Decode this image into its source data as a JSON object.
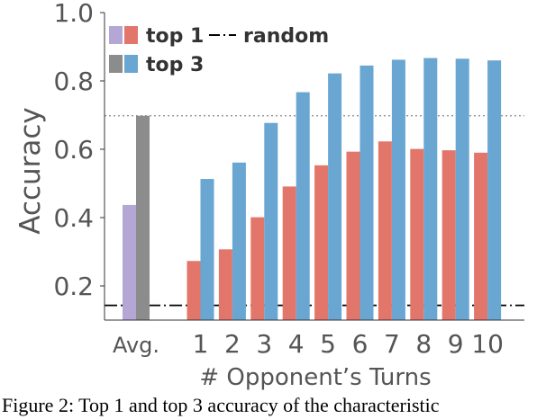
{
  "chart_data": {
    "type": "bar",
    "xlabel": "# Opponent’s Turns",
    "ylabel": "Accuracy",
    "ylim": [
      0.1,
      1.0
    ],
    "yticks": [
      "0.2",
      "0.4",
      "0.6",
      "0.8",
      "1.0"
    ],
    "grid": false,
    "legend_position": "top-left",
    "average_group": {
      "label": "Avg.",
      "series": [
        {
          "name": "top 1",
          "value": 0.437,
          "color": "#b4a7d6"
        },
        {
          "name": "top 3",
          "value": 0.698,
          "color": "#8c8c8c"
        }
      ]
    },
    "categories": [
      "1",
      "2",
      "3",
      "4",
      "5",
      "6",
      "7",
      "8",
      "9",
      "10"
    ],
    "series": [
      {
        "name": "top 1",
        "color": "#e2766a",
        "values": [
          0.273,
          0.307,
          0.401,
          0.491,
          0.553,
          0.593,
          0.623,
          0.601,
          0.597,
          0.59
        ]
      },
      {
        "name": "top 3",
        "color": "#6aa6d2",
        "values": [
          0.513,
          0.561,
          0.677,
          0.767,
          0.822,
          0.845,
          0.862,
          0.867,
          0.865,
          0.86
        ]
      }
    ],
    "reference_lines": [
      {
        "name": "random",
        "value": 0.143,
        "style": "dash-dot",
        "color": "#000000"
      },
      {
        "name": "",
        "value": 0.698,
        "style": "dotted",
        "color": "#888888"
      }
    ],
    "legend": [
      {
        "label": "top 1",
        "colors": [
          "#b4a7d6",
          "#e2766a"
        ]
      },
      {
        "label": "random",
        "line": "dash-dot"
      },
      {
        "label": "top 3",
        "colors": [
          "#8c8c8c",
          "#6aa6d2"
        ]
      }
    ]
  },
  "caption": "Figure 2: Top 1 and top 3 accuracy of the characteristic"
}
